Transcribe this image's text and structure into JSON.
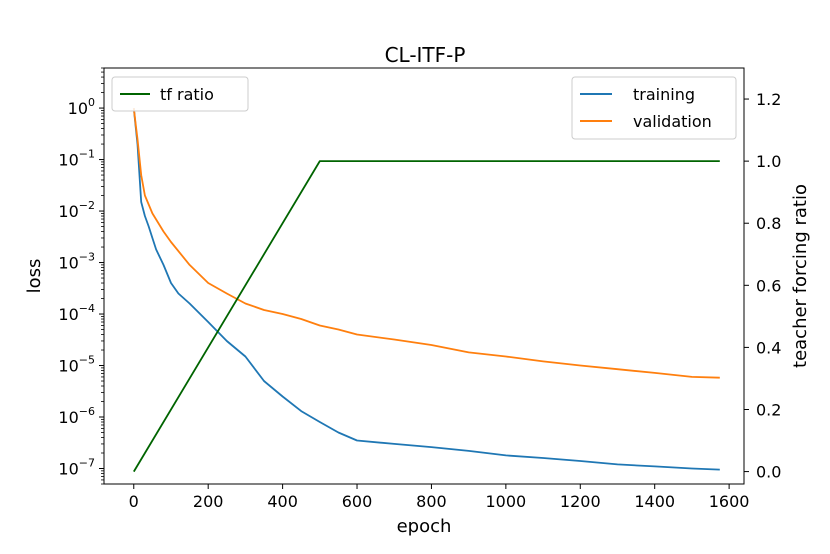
{
  "chart_data": {
    "type": "line",
    "title": "CL-ITF-P",
    "xlabel": "epoch",
    "ylabel": "loss",
    "y2label": "teacher forcing ratio",
    "xlim": [
      -80,
      1640
    ],
    "ylim": [
      5e-08,
      6
    ],
    "y2lim": [
      -0.04,
      1.3
    ],
    "yscale": "log",
    "grid": false,
    "x_ticks": [
      0,
      200,
      400,
      600,
      800,
      1000,
      1200,
      1400,
      1600
    ],
    "x_tick_labels": [
      "0",
      "200",
      "400",
      "600",
      "800",
      "1000",
      "1200",
      "1400",
      "1600"
    ],
    "y_ticks": [
      1e-07,
      1e-06,
      1e-05,
      0.0001,
      0.001,
      0.01,
      0.1,
      1
    ],
    "y_tick_labels": [
      {
        "base": "10",
        "exp": "−7"
      },
      {
        "base": "10",
        "exp": "−6"
      },
      {
        "base": "10",
        "exp": "−5"
      },
      {
        "base": "10",
        "exp": "−4"
      },
      {
        "base": "10",
        "exp": "−3"
      },
      {
        "base": "10",
        "exp": "−2"
      },
      {
        "base": "10",
        "exp": "−1"
      },
      {
        "base": "10",
        "exp": "0"
      }
    ],
    "y2_ticks": [
      0.0,
      0.2,
      0.4,
      0.6,
      0.8,
      1.0,
      1.2
    ],
    "y2_tick_labels": [
      "0.0",
      "0.2",
      "0.4",
      "0.6",
      "0.8",
      "1.0",
      "1.2"
    ],
    "legend_left": {
      "position": "upper-left",
      "entries": [
        "tf ratio"
      ]
    },
    "legend_right": {
      "position": "upper-right",
      "entries": [
        "training",
        "validation"
      ]
    },
    "series": [
      {
        "name": "training",
        "color": "#1f77b4",
        "axis": "left",
        "x": [
          0,
          5,
          10,
          20,
          30,
          40,
          50,
          60,
          80,
          100,
          120,
          150,
          200,
          250,
          300,
          350,
          400,
          450,
          500,
          550,
          600,
          700,
          800,
          900,
          1000,
          1100,
          1200,
          1300,
          1400,
          1500,
          1575
        ],
        "y": [
          1.0,
          0.45,
          0.2,
          0.015,
          0.008,
          0.005,
          0.003,
          0.0018,
          0.0009,
          0.0004,
          0.00025,
          0.00016,
          7e-05,
          3e-05,
          1.5e-05,
          5e-06,
          2.5e-06,
          1.3e-06,
          8e-07,
          5e-07,
          3.5e-07,
          3e-07,
          2.6e-07,
          2.2e-07,
          1.8e-07,
          1.6e-07,
          1.4e-07,
          1.2e-07,
          1.1e-07,
          1e-07,
          9.5e-08
        ]
      },
      {
        "name": "validation",
        "color": "#ff7f0e",
        "axis": "left",
        "x": [
          0,
          5,
          10,
          20,
          30,
          50,
          80,
          100,
          150,
          200,
          250,
          300,
          350,
          400,
          450,
          500,
          550,
          600,
          700,
          800,
          900,
          1000,
          1100,
          1200,
          1300,
          1400,
          1500,
          1575
        ],
        "y": [
          1.0,
          0.5,
          0.25,
          0.05,
          0.02,
          0.009,
          0.004,
          0.0025,
          0.0009,
          0.0004,
          0.00025,
          0.00016,
          0.00012,
          0.0001,
          8e-05,
          6e-05,
          5e-05,
          4e-05,
          3.2e-05,
          2.5e-05,
          1.8e-05,
          1.5e-05,
          1.2e-05,
          1e-05,
          8.5e-06,
          7.2e-06,
          6e-06,
          5.8e-06
        ]
      },
      {
        "name": "tf ratio",
        "color": "#006400",
        "axis": "right",
        "x": [
          0,
          500,
          1575
        ],
        "y": [
          0.0,
          1.0,
          1.0
        ]
      }
    ]
  }
}
